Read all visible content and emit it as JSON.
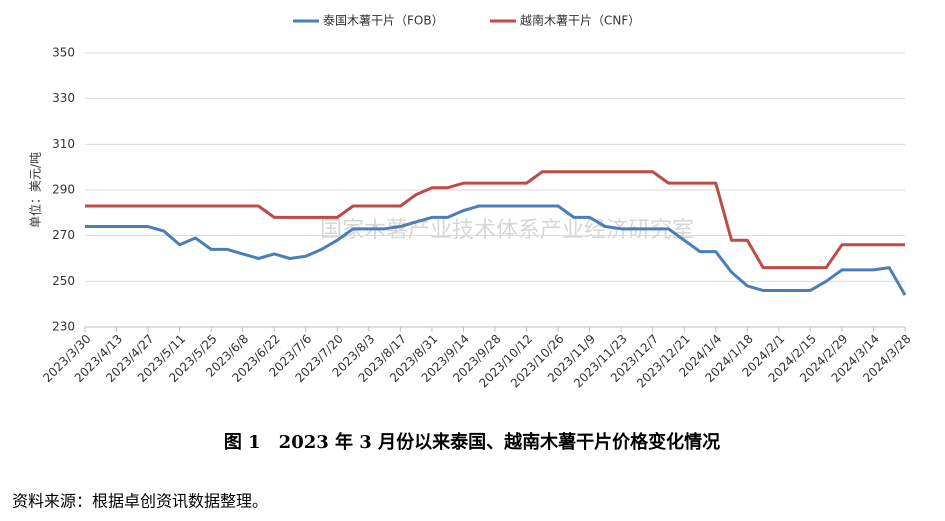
{
  "chart_data": {
    "type": "line",
    "ylabel": "单位：美元/吨",
    "watermark": "国家木薯产业技术体系产业经济研究室",
    "caption": "图 1　2023 年 3 月份以来泰国、越南木薯干片价格变化情况",
    "source": "资料来源：根据卓创资讯数据整理。",
    "categories": [
      "2023/3/30",
      null,
      "2023/4/13",
      null,
      "2023/4/27",
      null,
      "2023/5/11",
      null,
      "2023/5/25",
      null,
      "2023/6/8",
      null,
      "2023/6/22",
      null,
      "2023/7/6",
      null,
      "2023/7/20",
      null,
      "2023/8/3",
      null,
      "2023/8/17",
      null,
      "2023/8/31",
      null,
      "2023/9/14",
      null,
      "2023/9/28",
      null,
      "2023/10/12",
      null,
      "2023/10/26",
      null,
      "2023/11/9",
      null,
      "2023/11/23",
      null,
      "2023/12/7",
      null,
      "2023/12/21",
      null,
      "2024/1/4",
      null,
      "2024/1/18",
      null,
      "2024/2/1",
      null,
      "2024/2/15",
      null,
      "2024/2/29",
      null,
      "2024/3/14",
      null,
      "2024/3/28"
    ],
    "series": [
      {
        "name": "泰国木薯干片（FOB）",
        "color": "#4a7ebb",
        "values": [
          274,
          274,
          274,
          274,
          274,
          272,
          266,
          269,
          264,
          264,
          262,
          260,
          262,
          260,
          261,
          264,
          268,
          273,
          273,
          273,
          274,
          276,
          278,
          278,
          281,
          283,
          283,
          283,
          283,
          283,
          283,
          278,
          278,
          274,
          273,
          273,
          273,
          273,
          268,
          263,
          263,
          254,
          248,
          246,
          246,
          246,
          246,
          250,
          255,
          255,
          255,
          256,
          244
        ]
      },
      {
        "name": "越南木薯干片（CNF）",
        "color": "#be4b48",
        "values": [
          283,
          283,
          283,
          283,
          283,
          283,
          283,
          283,
          283,
          283,
          283,
          283,
          278,
          278,
          278,
          278,
          278,
          283,
          283,
          283,
          283,
          288,
          291,
          291,
          293,
          293,
          293,
          293,
          293,
          298,
          298,
          298,
          298,
          298,
          298,
          298,
          298,
          293,
          293,
          293,
          293,
          268,
          268,
          256,
          256,
          256,
          256,
          256,
          266,
          266,
          266,
          266,
          266
        ]
      }
    ],
    "ylim": [
      230,
      350
    ],
    "yticks": [
      230,
      250,
      270,
      290,
      310,
      330,
      350
    ],
    "grid": true
  }
}
